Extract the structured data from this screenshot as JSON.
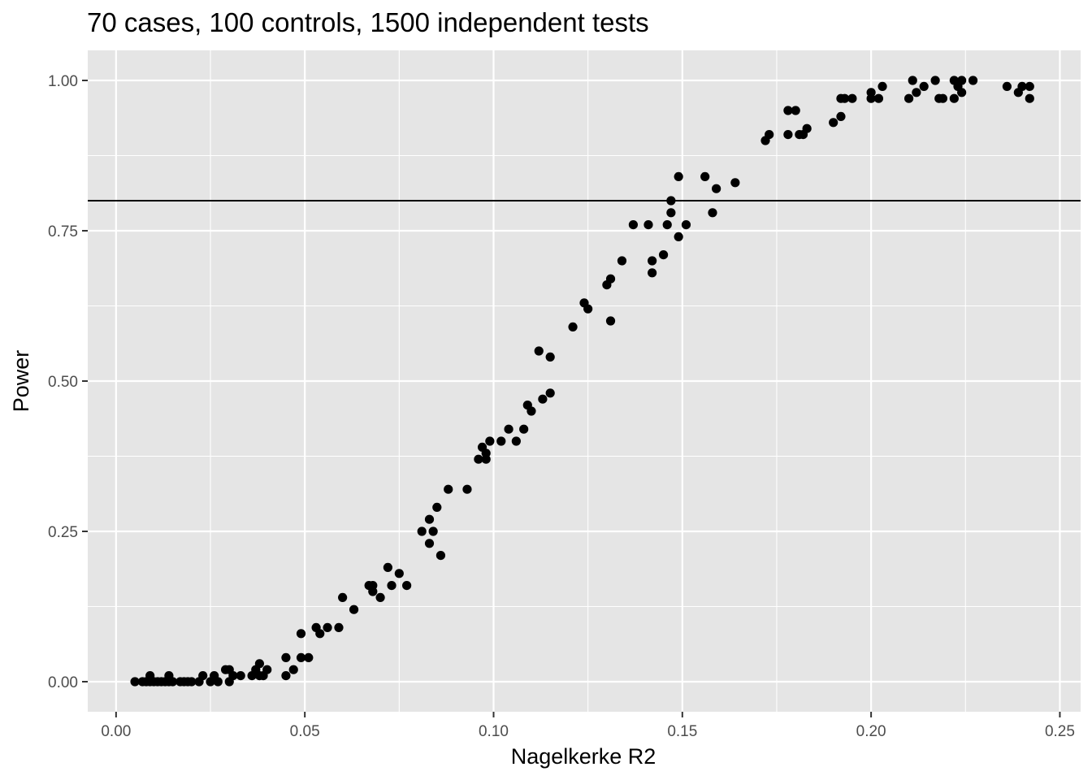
{
  "chart_data": {
    "type": "scatter",
    "title": "70 cases, 100 controls, 1500 independent tests",
    "xlabel": "Nagelkerke R2",
    "ylabel": "Power",
    "xlim": [
      -0.0075,
      0.2555
    ],
    "ylim": [
      -0.05,
      1.05
    ],
    "x_ticks": [
      0.0,
      0.05,
      0.1,
      0.15,
      0.2,
      0.25
    ],
    "x_tick_labels": [
      "0.00",
      "0.05",
      "0.10",
      "0.15",
      "0.20",
      "0.25"
    ],
    "y_ticks": [
      0.0,
      0.25,
      0.5,
      0.75,
      1.0
    ],
    "y_tick_labels": [
      "0.00",
      "0.25",
      "0.50",
      "0.75",
      "1.00"
    ],
    "grid": true,
    "hline": 0.8,
    "colors": {
      "panel": "#e5e5e5",
      "grid": "#ffffff",
      "point": "#000000",
      "hline": "#000000"
    },
    "points": [
      [
        0.005,
        0.0
      ],
      [
        0.007,
        0.0
      ],
      [
        0.008,
        0.0
      ],
      [
        0.009,
        0.0
      ],
      [
        0.009,
        0.01
      ],
      [
        0.01,
        0.0
      ],
      [
        0.011,
        0.0
      ],
      [
        0.012,
        0.0
      ],
      [
        0.013,
        0.0
      ],
      [
        0.014,
        0.0
      ],
      [
        0.014,
        0.01
      ],
      [
        0.015,
        0.0
      ],
      [
        0.017,
        0.0
      ],
      [
        0.018,
        0.0
      ],
      [
        0.019,
        0.0
      ],
      [
        0.02,
        0.0
      ],
      [
        0.022,
        0.0
      ],
      [
        0.023,
        0.01
      ],
      [
        0.025,
        0.0
      ],
      [
        0.026,
        0.01
      ],
      [
        0.027,
        0.0
      ],
      [
        0.029,
        0.02
      ],
      [
        0.03,
        0.0
      ],
      [
        0.03,
        0.02
      ],
      [
        0.031,
        0.01
      ],
      [
        0.033,
        0.01
      ],
      [
        0.036,
        0.01
      ],
      [
        0.037,
        0.02
      ],
      [
        0.038,
        0.01
      ],
      [
        0.038,
        0.03
      ],
      [
        0.039,
        0.01
      ],
      [
        0.04,
        0.02
      ],
      [
        0.045,
        0.01
      ],
      [
        0.045,
        0.04
      ],
      [
        0.047,
        0.02
      ],
      [
        0.049,
        0.08
      ],
      [
        0.049,
        0.04
      ],
      [
        0.051,
        0.04
      ],
      [
        0.053,
        0.09
      ],
      [
        0.054,
        0.08
      ],
      [
        0.056,
        0.09
      ],
      [
        0.059,
        0.09
      ],
      [
        0.06,
        0.14
      ],
      [
        0.063,
        0.12
      ],
      [
        0.067,
        0.16
      ],
      [
        0.068,
        0.15
      ],
      [
        0.068,
        0.16
      ],
      [
        0.07,
        0.14
      ],
      [
        0.072,
        0.19
      ],
      [
        0.073,
        0.16
      ],
      [
        0.075,
        0.18
      ],
      [
        0.077,
        0.16
      ],
      [
        0.081,
        0.25
      ],
      [
        0.083,
        0.23
      ],
      [
        0.083,
        0.27
      ],
      [
        0.084,
        0.25
      ],
      [
        0.085,
        0.29
      ],
      [
        0.086,
        0.21
      ],
      [
        0.088,
        0.32
      ],
      [
        0.093,
        0.32
      ],
      [
        0.096,
        0.37
      ],
      [
        0.097,
        0.39
      ],
      [
        0.098,
        0.37
      ],
      [
        0.098,
        0.38
      ],
      [
        0.099,
        0.4
      ],
      [
        0.102,
        0.4
      ],
      [
        0.104,
        0.42
      ],
      [
        0.106,
        0.4
      ],
      [
        0.108,
        0.42
      ],
      [
        0.109,
        0.46
      ],
      [
        0.11,
        0.45
      ],
      [
        0.112,
        0.55
      ],
      [
        0.113,
        0.47
      ],
      [
        0.115,
        0.54
      ],
      [
        0.115,
        0.48
      ],
      [
        0.121,
        0.59
      ],
      [
        0.124,
        0.63
      ],
      [
        0.125,
        0.62
      ],
      [
        0.13,
        0.66
      ],
      [
        0.131,
        0.6
      ],
      [
        0.131,
        0.67
      ],
      [
        0.134,
        0.7
      ],
      [
        0.137,
        0.76
      ],
      [
        0.141,
        0.76
      ],
      [
        0.142,
        0.7
      ],
      [
        0.142,
        0.68
      ],
      [
        0.145,
        0.71
      ],
      [
        0.146,
        0.76
      ],
      [
        0.147,
        0.78
      ],
      [
        0.147,
        0.8
      ],
      [
        0.149,
        0.74
      ],
      [
        0.149,
        0.84
      ],
      [
        0.151,
        0.76
      ],
      [
        0.156,
        0.84
      ],
      [
        0.158,
        0.78
      ],
      [
        0.159,
        0.82
      ],
      [
        0.164,
        0.83
      ],
      [
        0.172,
        0.9
      ],
      [
        0.173,
        0.91
      ],
      [
        0.178,
        0.91
      ],
      [
        0.178,
        0.95
      ],
      [
        0.18,
        0.95
      ],
      [
        0.181,
        0.91
      ],
      [
        0.182,
        0.91
      ],
      [
        0.183,
        0.92
      ],
      [
        0.19,
        0.93
      ],
      [
        0.192,
        0.94
      ],
      [
        0.192,
        0.97
      ],
      [
        0.193,
        0.97
      ],
      [
        0.195,
        0.97
      ],
      [
        0.2,
        0.98
      ],
      [
        0.2,
        0.97
      ],
      [
        0.202,
        0.97
      ],
      [
        0.203,
        0.99
      ],
      [
        0.21,
        0.97
      ],
      [
        0.211,
        1.0
      ],
      [
        0.212,
        0.98
      ],
      [
        0.214,
        0.99
      ],
      [
        0.217,
        1.0
      ],
      [
        0.218,
        0.97
      ],
      [
        0.219,
        0.97
      ],
      [
        0.222,
        1.0
      ],
      [
        0.222,
        0.97
      ],
      [
        0.223,
        0.99
      ],
      [
        0.224,
        1.0
      ],
      [
        0.224,
        0.98
      ],
      [
        0.227,
        1.0
      ],
      [
        0.236,
        0.99
      ],
      [
        0.239,
        0.98
      ],
      [
        0.24,
        0.99
      ],
      [
        0.242,
        0.99
      ],
      [
        0.242,
        0.97
      ]
    ]
  }
}
